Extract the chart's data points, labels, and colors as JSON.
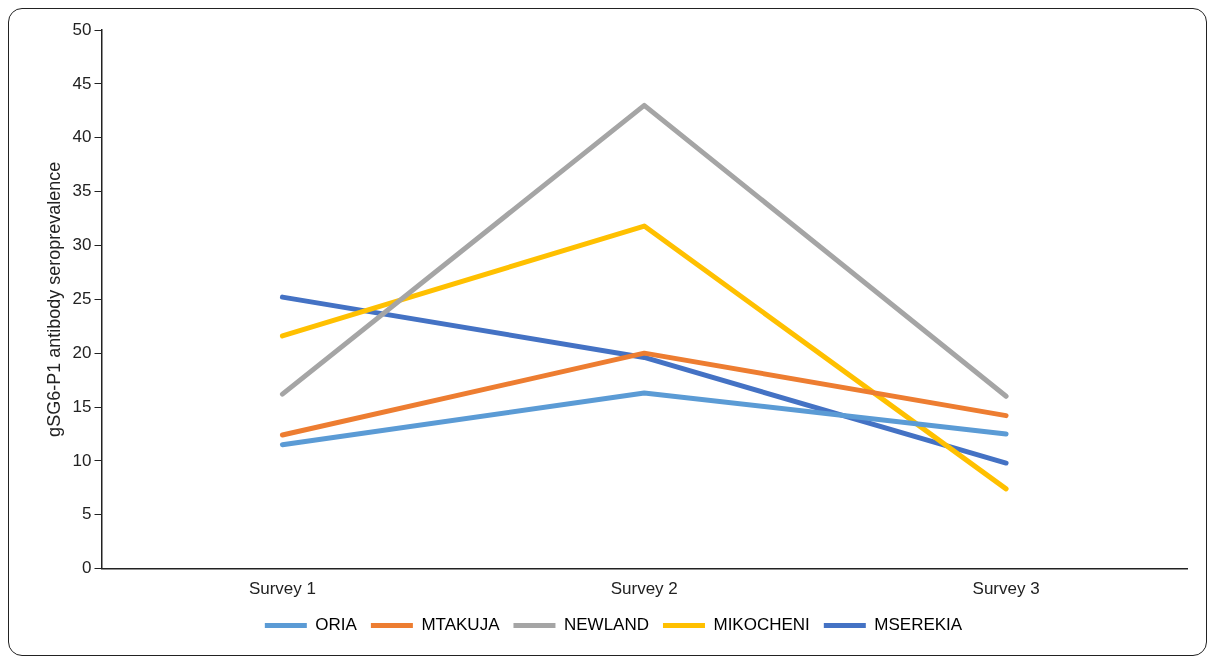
{
  "chart_data": {
    "type": "line",
    "ylabel": "gSG6-P1 antibody seroprevalence",
    "categories": [
      "Survey 1",
      "Survey 2",
      "Survey 3"
    ],
    "series": [
      {
        "name": "ORIA",
        "color": "#5b9bd5",
        "values": [
          11.5,
          16.3,
          12.5
        ]
      },
      {
        "name": "MTAKUJA",
        "color": "#ed7d31",
        "values": [
          12.4,
          20,
          14.2
        ]
      },
      {
        "name": "NEWLAND",
        "color": "#a5a5a5",
        "values": [
          16.2,
          43,
          16
        ]
      },
      {
        "name": "MIKOCHENI",
        "color": "#ffc000",
        "values": [
          21.6,
          31.8,
          7.4
        ]
      },
      {
        "name": "MSEREKIA",
        "color": "#4472c4",
        "values": [
          25.2,
          19.6,
          9.8
        ]
      }
    ],
    "ylim": [
      0,
      50
    ],
    "yticks": [
      0,
      5,
      10,
      15,
      20,
      25,
      30,
      35,
      40,
      45,
      50
    ],
    "legend": "bottom"
  }
}
